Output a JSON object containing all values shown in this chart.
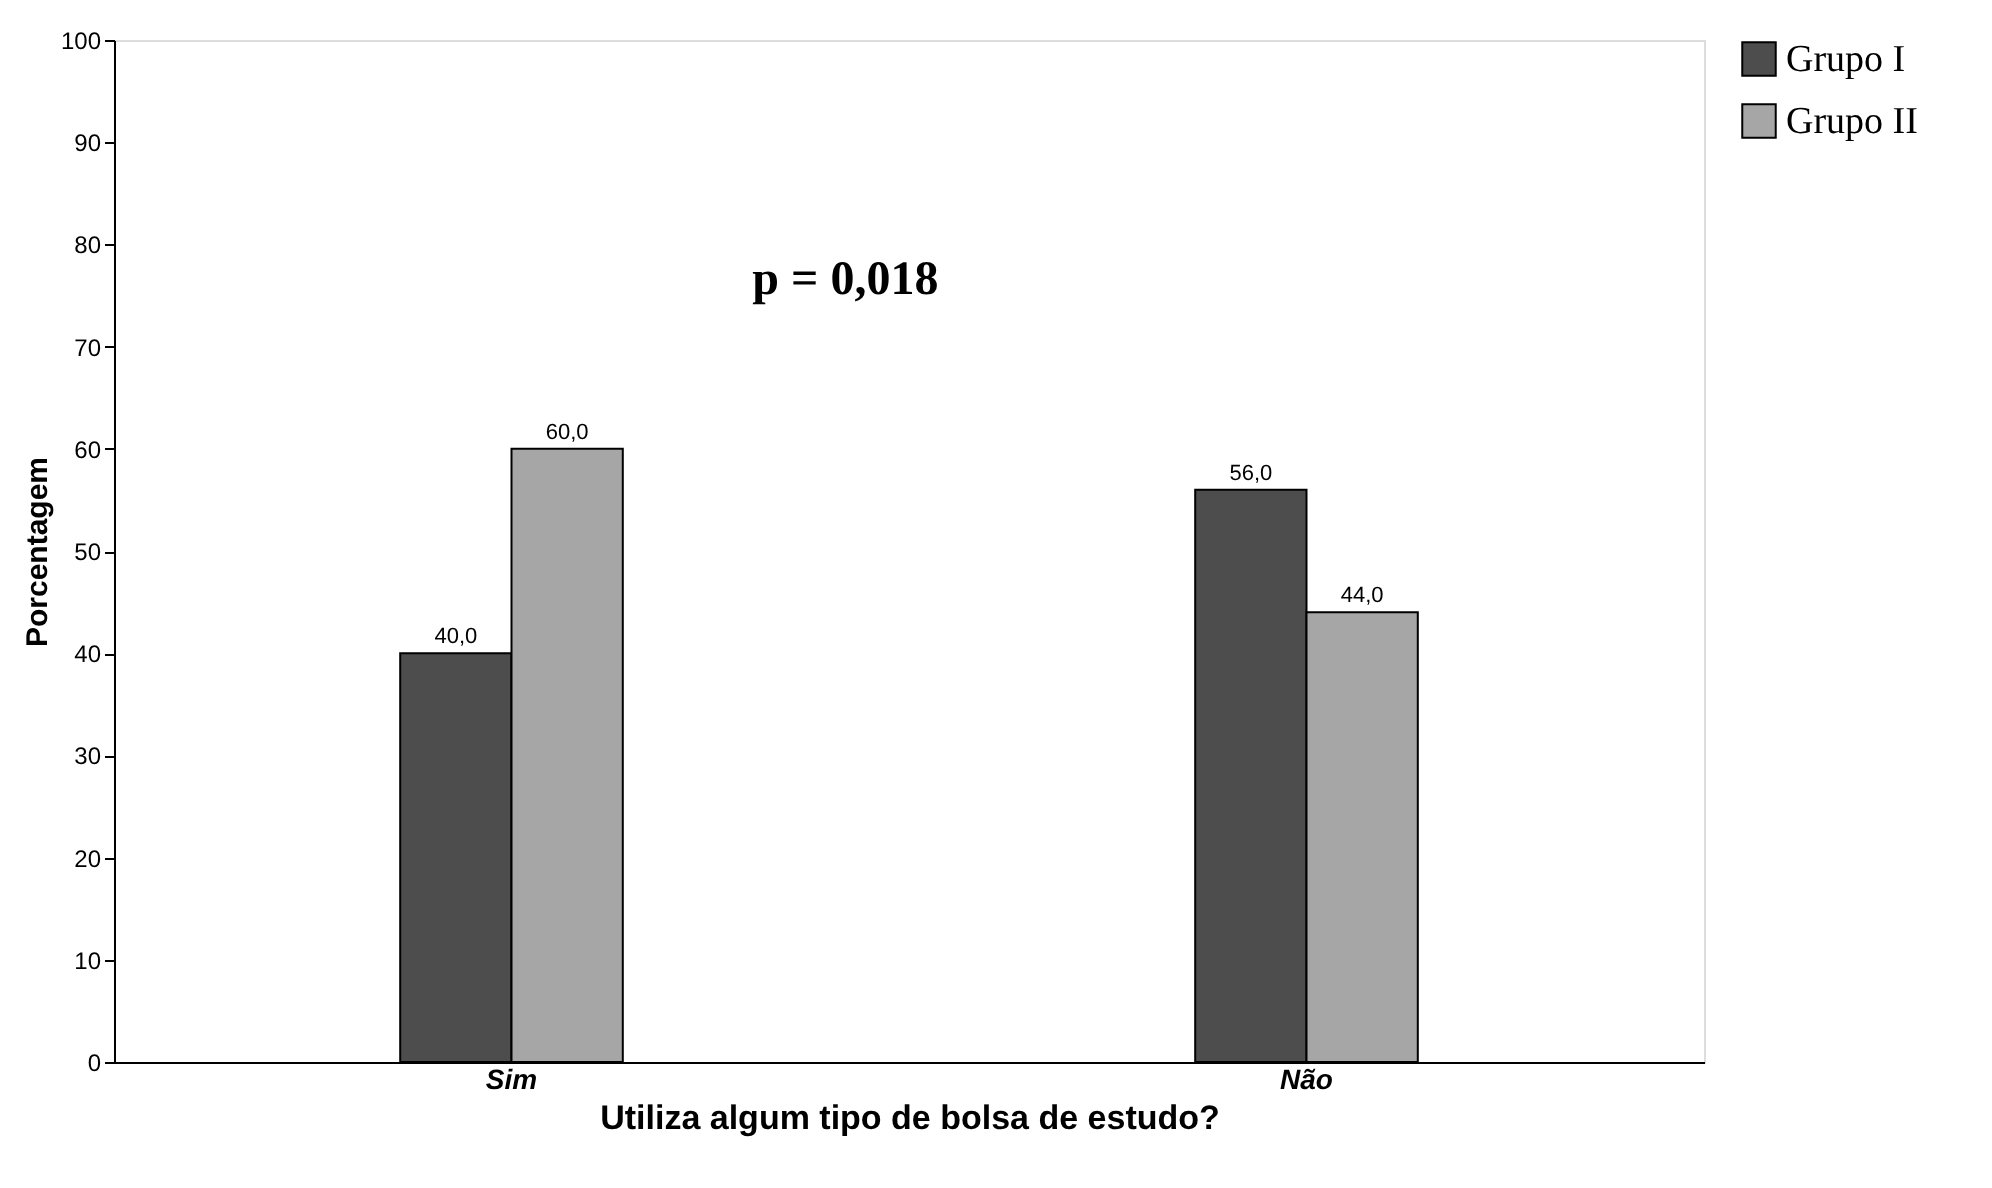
{
  "chart_data": {
    "type": "bar",
    "xlabel": "Utiliza algum tipo de bolsa de estudo?",
    "ylabel": "Porcentagem",
    "categories": [
      "Sim",
      "Não"
    ],
    "series": [
      {
        "name": "Grupo I",
        "color": "#4d4d4d",
        "values": [
          40.0,
          56.0
        ],
        "value_labels": [
          "40,0",
          "56,0"
        ]
      },
      {
        "name": "Grupo II",
        "color": "#a6a6a6",
        "values": [
          60.0,
          44.0
        ],
        "value_labels": [
          "60,0",
          "44,0"
        ]
      }
    ],
    "ylim": [
      0,
      100
    ],
    "yticks": [
      0,
      10,
      20,
      30,
      40,
      50,
      60,
      70,
      80,
      90,
      100
    ],
    "grid": false,
    "legend": "right",
    "annotations": [
      "p = 0,018"
    ]
  }
}
